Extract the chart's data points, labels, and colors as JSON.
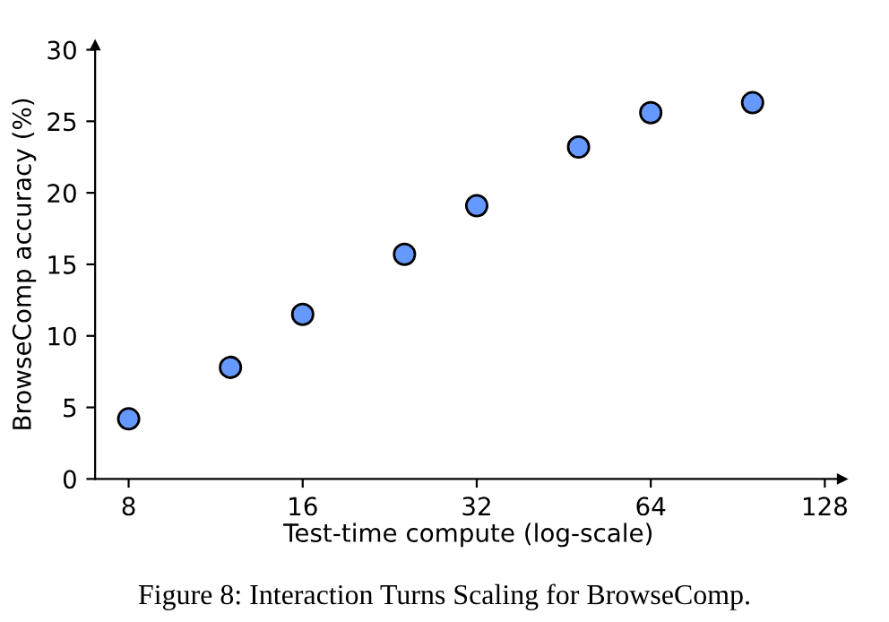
{
  "chart_data": {
    "type": "scatter",
    "xlabel": "Test-time compute (log-scale)",
    "ylabel": "BrowseComp accuracy (%)",
    "x": [
      8,
      12,
      16,
      24,
      32,
      48,
      64,
      96
    ],
    "series": [
      {
        "color": "#6699ff",
        "values": [
          4.2,
          7.8,
          11.5,
          15.7,
          19.1,
          23.2,
          25.6,
          26.3
        ]
      }
    ],
    "log": "x",
    "xlim": [
      7,
      137
    ],
    "ylim": [
      0,
      30
    ],
    "xticks": [
      8,
      16,
      32,
      64,
      128
    ],
    "yticks": [
      0,
      5,
      10,
      15,
      20,
      25,
      30
    ],
    "marker": "circle",
    "grid": false,
    "legend": false,
    "annotations": [
      "Figure 8: Interaction Turns Scaling for BrowseComp."
    ]
  }
}
